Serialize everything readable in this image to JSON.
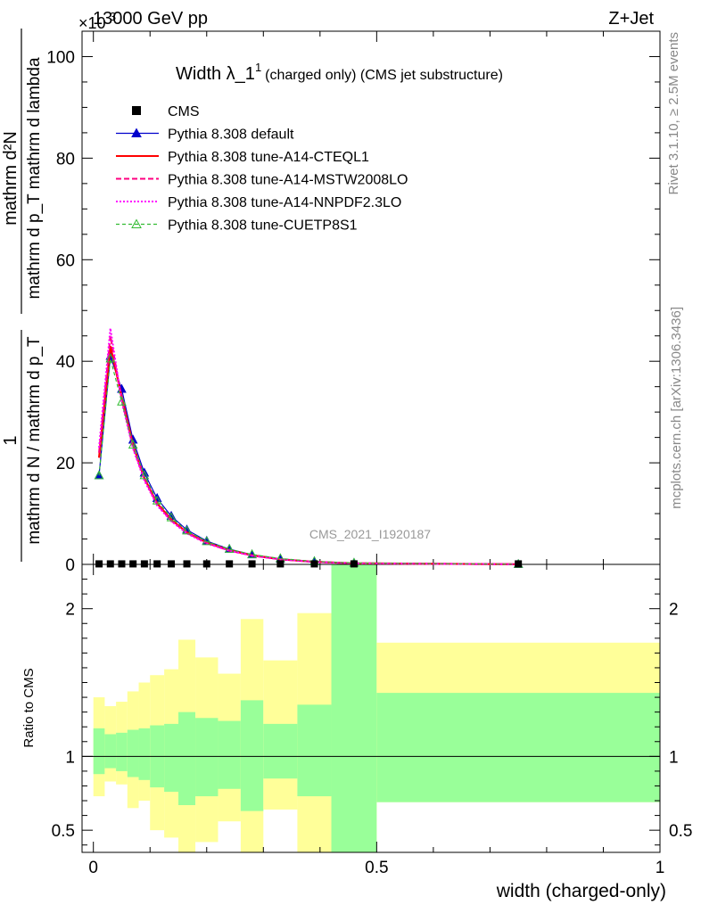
{
  "header": {
    "energy": "13000 GeV pp",
    "process": "Z+Jet",
    "exponent": "×10",
    "exponent_power": "-3"
  },
  "side_labels": {
    "rivet": "Rivet 3.1.10, ≥ 2.5M events",
    "mcplots": "mcplots.cern.ch [arXiv:1306.3436]"
  },
  "watermark": "CMS_2021_I1920187",
  "title": {
    "main": "Width λ_1",
    "sup": "1",
    "sub": "(charged only) (CMS jet substructure)"
  },
  "main_ylabel": {
    "numerator": "mathrm d²N",
    "denominator": "mathrm d p_T mathrm d lambda",
    "prefix_numerator": "1",
    "prefix_denominator": "mathrm d N / mathrm d p_T"
  },
  "ratio_ylabel": "Ratio to CMS",
  "xlabel": "width (charged-only)",
  "legend": [
    {
      "label": "CMS",
      "color": "#000000",
      "style": "square"
    },
    {
      "label": "Pythia 8.308 default",
      "color": "#0000cc",
      "style": "line-triangle"
    },
    {
      "label": "Pythia 8.308 tune-A14-CTEQL1",
      "color": "#ff0000",
      "style": "solid"
    },
    {
      "label": "Pythia 8.308 tune-A14-MSTW2008LO",
      "color": "#ff0080",
      "style": "dashed"
    },
    {
      "label": "Pythia 8.308 tune-A14-NNPDF2.3LO",
      "color": "#ff00ff",
      "style": "dotted"
    },
    {
      "label": "Pythia 8.308 tune-CUETP8S1",
      "color": "#33bb33",
      "style": "dashed-triangle-open"
    }
  ],
  "chart_data": [
    {
      "type": "line",
      "panel": "main",
      "xlim": [
        -0.02,
        1.0
      ],
      "ylim": [
        0,
        105
      ],
      "y_scale_note": "×10^-3",
      "x_ticks": [
        0,
        0.5,
        1
      ],
      "x_tick_labels": [
        "0",
        "0.5",
        "1"
      ],
      "y_ticks": [
        0,
        20,
        40,
        60,
        80,
        100
      ],
      "y_tick_labels": [
        "0",
        "20",
        "40",
        "60",
        "80",
        "100"
      ],
      "bin_edges": [
        0.0,
        0.02,
        0.04,
        0.06,
        0.08,
        0.1,
        0.125,
        0.15,
        0.18,
        0.22,
        0.26,
        0.3,
        0.36,
        0.42,
        0.5,
        1.0
      ],
      "cms": {
        "x": [
          0.01,
          0.03,
          0.05,
          0.07,
          0.09,
          0.1125,
          0.1375,
          0.165,
          0.2,
          0.24,
          0.28,
          0.33,
          0.39,
          0.46,
          0.75
        ],
        "y": [
          0.1,
          0.1,
          0.1,
          0.1,
          0.1,
          0.1,
          0.1,
          0.1,
          0.1,
          0.1,
          0.1,
          0.1,
          0.1,
          0.1,
          0.1
        ]
      },
      "series": [
        {
          "name": "Pythia 8.308 default",
          "x": [
            0.01,
            0.03,
            0.05,
            0.07,
            0.09,
            0.1125,
            0.1375,
            0.165,
            0.2,
            0.24,
            0.28,
            0.33,
            0.39,
            0.46,
            0.75
          ],
          "y": [
            17.5,
            41,
            34.5,
            24.5,
            18,
            13,
            9.5,
            6.8,
            4.6,
            3.0,
            1.9,
            1.1,
            0.55,
            0.25,
            0.02
          ]
        },
        {
          "name": "Pythia 8.308 tune-A14-CTEQL1",
          "x": [
            0.01,
            0.03,
            0.05,
            0.07,
            0.09,
            0.1125,
            0.1375,
            0.165,
            0.2,
            0.24,
            0.28,
            0.33,
            0.39,
            0.46,
            0.75
          ],
          "y": [
            21,
            43,
            33,
            23.5,
            17,
            12,
            8.8,
            6.3,
            4.3,
            2.8,
            1.8,
            1.0,
            0.5,
            0.22,
            0.02
          ]
        },
        {
          "name": "Pythia 8.308 tune-A14-MSTW2008LO",
          "x": [
            0.01,
            0.03,
            0.05,
            0.07,
            0.09,
            0.1125,
            0.1375,
            0.165,
            0.2,
            0.24,
            0.28,
            0.33,
            0.39,
            0.46,
            0.75
          ],
          "y": [
            22,
            45,
            32.5,
            23,
            16.8,
            11.8,
            8.6,
            6.2,
            4.2,
            2.7,
            1.75,
            1.0,
            0.5,
            0.22,
            0.02
          ]
        },
        {
          "name": "Pythia 8.308 tune-A14-NNPDF2.3LO",
          "x": [
            0.01,
            0.03,
            0.05,
            0.07,
            0.09,
            0.1125,
            0.1375,
            0.165,
            0.2,
            0.24,
            0.28,
            0.33,
            0.39,
            0.46,
            0.75
          ],
          "y": [
            23,
            46.5,
            32,
            22.8,
            16.5,
            11.6,
            8.5,
            6.1,
            4.1,
            2.7,
            1.7,
            0.98,
            0.48,
            0.21,
            0.02
          ]
        },
        {
          "name": "Pythia 8.308 tune-CUETP8S1",
          "x": [
            0.01,
            0.03,
            0.05,
            0.07,
            0.09,
            0.1125,
            0.1375,
            0.165,
            0.2,
            0.24,
            0.28,
            0.33,
            0.39,
            0.46,
            0.75
          ],
          "y": [
            17.5,
            40.5,
            32,
            23.5,
            17.5,
            12.5,
            9.2,
            6.6,
            4.5,
            3.0,
            1.95,
            1.15,
            0.58,
            0.27,
            0.02
          ]
        }
      ]
    },
    {
      "type": "area",
      "panel": "ratio",
      "xlim": [
        -0.02,
        1.0
      ],
      "ylim": [
        0.35,
        2.3
      ],
      "y_ticks": [
        0.5,
        1,
        2
      ],
      "y_tick_labels": [
        "0.5",
        "1",
        "2"
      ],
      "reference": 1,
      "bin_edges": [
        0.0,
        0.02,
        0.04,
        0.06,
        0.08,
        0.1,
        0.125,
        0.15,
        0.18,
        0.22,
        0.26,
        0.3,
        0.36,
        0.42,
        0.5,
        1.0
      ],
      "green_band": {
        "lo": [
          0.88,
          0.92,
          0.9,
          0.86,
          0.84,
          0.79,
          0.76,
          0.67,
          0.73,
          0.78,
          0.63,
          0.85,
          0.73,
          0.3,
          0.69
        ],
        "hi": [
          1.19,
          1.15,
          1.16,
          1.18,
          1.19,
          1.21,
          1.22,
          1.3,
          1.26,
          1.24,
          1.38,
          1.22,
          1.35,
          2.6,
          1.43
        ]
      },
      "yellow_band": {
        "lo": [
          0.73,
          0.83,
          0.81,
          0.65,
          0.7,
          0.5,
          0.45,
          0.3,
          0.42,
          0.56,
          0.3,
          0.64,
          0.35,
          0.3,
          0.69
        ],
        "hi": [
          1.4,
          1.34,
          1.37,
          1.44,
          1.5,
          1.55,
          1.59,
          1.79,
          1.67,
          1.56,
          1.93,
          1.65,
          1.97,
          2.6,
          1.77
        ]
      }
    }
  ]
}
